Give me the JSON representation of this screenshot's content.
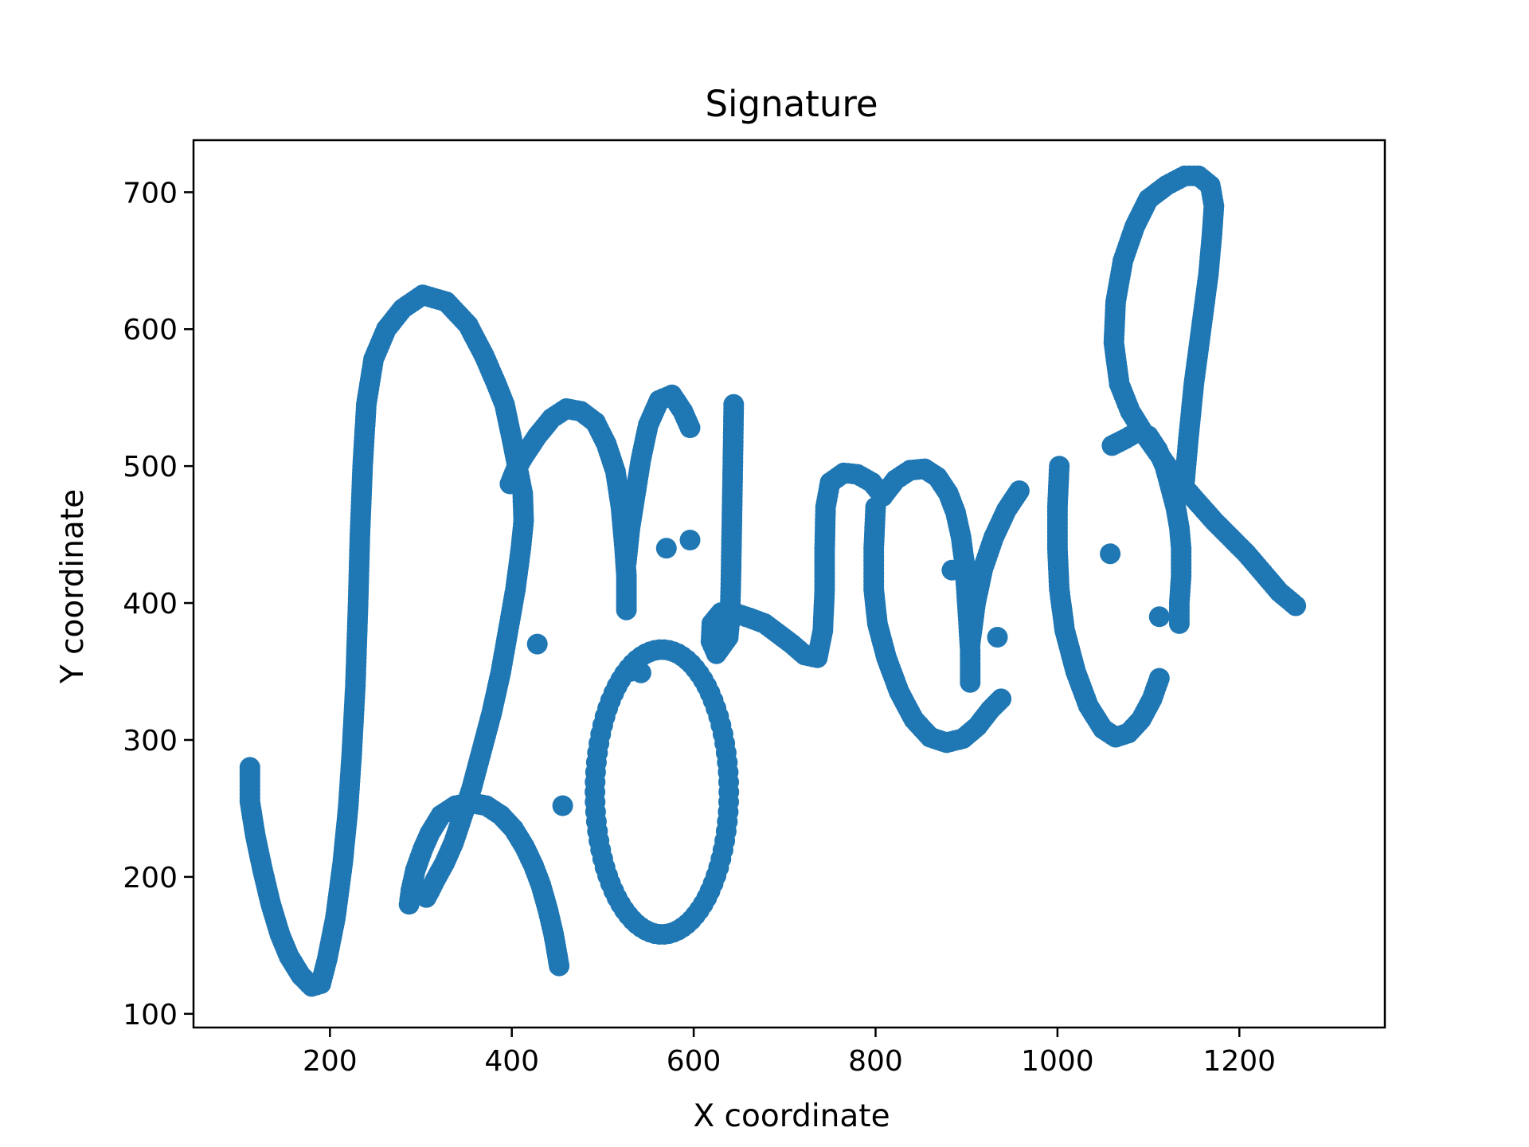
{
  "chart_data": {
    "type": "scatter",
    "title": "Signature",
    "xlabel": "X coordinate",
    "ylabel": "Y coordinate",
    "xlim": [
      50,
      1360
    ],
    "ylim": [
      90,
      738
    ],
    "xticks": [
      200,
      400,
      600,
      800,
      1000,
      1200
    ],
    "yticks": [
      100,
      200,
      300,
      400,
      500,
      600,
      700
    ],
    "xtick_labels": [
      "200",
      "400",
      "600",
      "800",
      "1000",
      "1200"
    ],
    "ytick_labels": [
      "100",
      "200",
      "300",
      "400",
      "500",
      "600",
      "700"
    ],
    "grid": false,
    "legend": "none",
    "marker_color": "#1f77b4",
    "strokes": [
      [
        [
          112,
          280
        ],
        [
          112,
          255
        ],
        [
          118,
          230
        ],
        [
          126,
          205
        ],
        [
          135,
          180
        ],
        [
          145,
          158
        ],
        [
          155,
          142
        ],
        [
          168,
          128
        ],
        [
          180,
          120
        ],
        [
          190,
          122
        ],
        [
          197,
          140
        ],
        [
          206,
          170
        ],
        [
          214,
          210
        ],
        [
          220,
          250
        ],
        [
          224,
          290
        ],
        [
          228,
          340
        ],
        [
          231,
          400
        ],
        [
          233,
          450
        ],
        [
          236,
          500
        ],
        [
          240,
          545
        ],
        [
          248,
          578
        ],
        [
          262,
          600
        ],
        [
          280,
          615
        ],
        [
          302,
          625
        ],
        [
          328,
          620
        ],
        [
          352,
          603
        ],
        [
          370,
          580
        ],
        [
          383,
          560
        ],
        [
          392,
          545
        ],
        [
          400,
          520
        ],
        [
          406,
          500
        ],
        [
          412,
          480
        ],
        [
          413,
          460
        ],
        [
          410,
          440
        ],
        [
          404,
          410
        ],
        [
          396,
          380
        ],
        [
          388,
          350
        ],
        [
          378,
          320
        ],
        [
          368,
          295
        ],
        [
          356,
          265
        ],
        [
          346,
          245
        ],
        [
          336,
          225
        ],
        [
          326,
          210
        ],
        [
          316,
          198
        ],
        [
          310,
          190
        ],
        [
          306,
          185
        ]
      ],
      [
        [
          287,
          180
        ],
        [
          289,
          190
        ],
        [
          294,
          205
        ],
        [
          302,
          220
        ],
        [
          310,
          232
        ],
        [
          322,
          245
        ],
        [
          338,
          252
        ],
        [
          355,
          254
        ],
        [
          372,
          252
        ],
        [
          388,
          245
        ],
        [
          402,
          235
        ],
        [
          414,
          222
        ],
        [
          424,
          208
        ],
        [
          432,
          194
        ],
        [
          440,
          175
        ],
        [
          446,
          158
        ],
        [
          450,
          143
        ],
        [
          452,
          135
        ]
      ],
      [
        [
          398,
          487
        ],
        [
          404,
          497
        ],
        [
          414,
          508
        ],
        [
          428,
          522
        ],
        [
          444,
          535
        ],
        [
          460,
          542
        ],
        [
          476,
          540
        ],
        [
          492,
          532
        ],
        [
          504,
          516
        ],
        [
          514,
          496
        ],
        [
          520,
          470
        ],
        [
          524,
          440
        ],
        [
          526,
          420
        ],
        [
          526,
          395
        ]
      ],
      [
        [
          526,
          430
        ],
        [
          530,
          455
        ],
        [
          536,
          480
        ],
        [
          542,
          505
        ],
        [
          550,
          530
        ],
        [
          562,
          548
        ],
        [
          576,
          552
        ],
        [
          588,
          540
        ],
        [
          596,
          528
        ]
      ],
      [
        [
          644,
          545
        ],
        [
          643,
          500
        ],
        [
          642,
          460
        ],
        [
          641,
          420
        ],
        [
          640,
          390
        ],
        [
          638,
          375
        ],
        [
          625,
          363
        ],
        [
          619,
          372
        ],
        [
          620,
          385
        ],
        [
          630,
          393
        ],
        [
          648,
          392
        ],
        [
          662,
          389
        ],
        [
          678,
          385
        ],
        [
          692,
          378
        ],
        [
          708,
          370
        ],
        [
          722,
          362
        ],
        [
          736,
          360
        ],
        [
          742,
          380
        ],
        [
          744,
          410
        ],
        [
          744,
          440
        ],
        [
          745,
          470
        ],
        [
          750,
          488
        ],
        [
          765,
          495
        ],
        [
          780,
          494
        ],
        [
          796,
          488
        ],
        [
          808,
          478
        ]
      ],
      [
        [
          808,
          478
        ],
        [
          822,
          490
        ],
        [
          838,
          497
        ],
        [
          854,
          498
        ],
        [
          868,
          492
        ],
        [
          880,
          480
        ],
        [
          888,
          466
        ],
        [
          894,
          448
        ],
        [
          898,
          428
        ],
        [
          900,
          408
        ],
        [
          902,
          388
        ],
        [
          904,
          365
        ],
        [
          904,
          342
        ]
      ],
      [
        [
          800,
          470
        ],
        [
          798,
          440
        ],
        [
          798,
          410
        ],
        [
          802,
          385
        ],
        [
          812,
          360
        ],
        [
          826,
          335
        ],
        [
          842,
          315
        ],
        [
          860,
          302
        ],
        [
          878,
          298
        ],
        [
          896,
          301
        ],
        [
          912,
          310
        ],
        [
          926,
          322
        ],
        [
          938,
          330
        ]
      ],
      [
        [
          904,
          370
        ],
        [
          910,
          400
        ],
        [
          918,
          425
        ],
        [
          930,
          448
        ],
        [
          944,
          468
        ],
        [
          958,
          482
        ]
      ],
      [
        [
          1060,
          515
        ],
        [
          1075,
          520
        ],
        [
          1088,
          525
        ],
        [
          1100,
          522
        ],
        [
          1110,
          512
        ],
        [
          1118,
          500
        ],
        [
          1124,
          485
        ],
        [
          1130,
          470
        ],
        [
          1134,
          455
        ],
        [
          1136,
          440
        ],
        [
          1136,
          420
        ],
        [
          1134,
          400
        ],
        [
          1134,
          385
        ]
      ],
      [
        [
          1002,
          500
        ],
        [
          1000,
          470
        ],
        [
          1000,
          440
        ],
        [
          1002,
          410
        ],
        [
          1008,
          380
        ],
        [
          1020,
          350
        ],
        [
          1034,
          325
        ],
        [
          1050,
          308
        ],
        [
          1064,
          302
        ],
        [
          1078,
          305
        ],
        [
          1092,
          315
        ],
        [
          1104,
          330
        ],
        [
          1112,
          345
        ]
      ],
      [
        [
          1140,
          490
        ],
        [
          1144,
          520
        ],
        [
          1150,
          560
        ],
        [
          1158,
          600
        ],
        [
          1166,
          640
        ],
        [
          1170,
          670
        ],
        [
          1172,
          690
        ],
        [
          1168,
          705
        ],
        [
          1155,
          712
        ],
        [
          1140,
          712
        ],
        [
          1120,
          705
        ],
        [
          1100,
          695
        ],
        [
          1085,
          675
        ],
        [
          1072,
          650
        ],
        [
          1064,
          620
        ],
        [
          1062,
          590
        ],
        [
          1068,
          560
        ],
        [
          1080,
          540
        ],
        [
          1094,
          525
        ],
        [
          1110,
          510
        ],
        [
          1124,
          497
        ],
        [
          1140,
          484
        ],
        [
          1156,
          472
        ],
        [
          1172,
          460
        ],
        [
          1190,
          448
        ],
        [
          1208,
          436
        ],
        [
          1226,
          422
        ],
        [
          1244,
          408
        ],
        [
          1262,
          398
        ]
      ]
    ],
    "dots": [
      [
        428,
        370
      ],
      [
        456,
        252
      ],
      [
        530,
        350
      ],
      [
        542,
        349
      ],
      [
        570,
        440
      ],
      [
        596,
        446
      ],
      [
        884,
        424
      ],
      [
        934,
        375
      ],
      [
        1058,
        436
      ],
      [
        1112,
        390
      ]
    ],
    "ring_center": [
      565,
      262
    ],
    "ring_radii": [
      80,
      52
    ]
  }
}
